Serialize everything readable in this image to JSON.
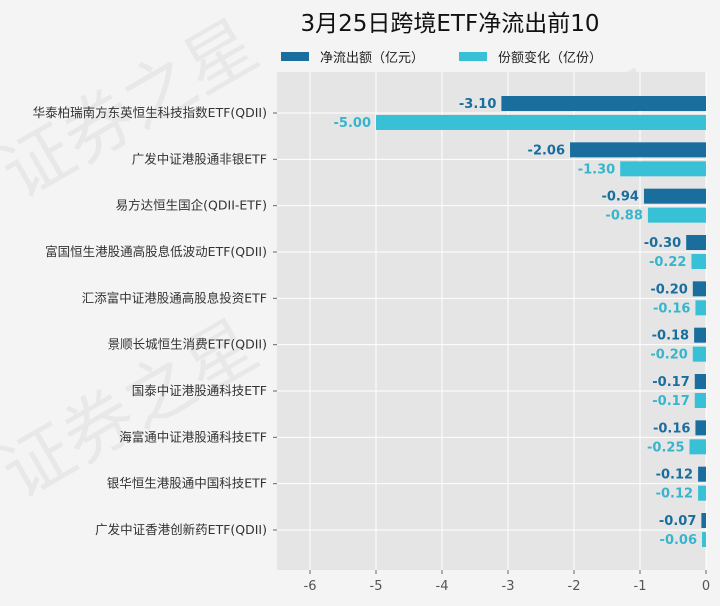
{
  "chart_data": {
    "type": "bar",
    "orientation": "horizontal",
    "title": "3月25日跨境ETF净流出前10",
    "categories": [
      "华泰柏瑞南方东英恒生科技指数ETF(QDII)",
      "广发中证港股通非银ETF",
      "易方达恒生国企(QDII-ETF)",
      "富国恒生港股通高股息低波动ETF(QDII)",
      "汇添富中证港股通高股息投资ETF",
      "景顺长城恒生消费ETF(QDII)",
      "国泰中证港股通科技ETF",
      "海富通中证港股通科技ETF",
      "银华恒生港股通中国科技ETF",
      "广发中证香港创新药ETF(QDII)"
    ],
    "series": [
      {
        "name": "净流出额（亿元）",
        "color": "#1a6e9e",
        "values": [
          -3.1,
          -2.06,
          -0.94,
          -0.3,
          -0.2,
          -0.18,
          -0.17,
          -0.16,
          -0.12,
          -0.07
        ],
        "labels": [
          "-3.10",
          "-2.06",
          "-0.94",
          "-0.30",
          "-0.20",
          "-0.18",
          "-0.17",
          "-0.16",
          "-0.12",
          "-0.07"
        ]
      },
      {
        "name": "份额变化（亿份）",
        "color": "#38c0d6",
        "values": [
          -5.0,
          -1.3,
          -0.88,
          -0.22,
          -0.16,
          -0.2,
          -0.17,
          -0.25,
          -0.12,
          -0.06
        ],
        "labels": [
          "-5.00",
          "-1.30",
          "-0.88",
          "-0.22",
          "-0.16",
          "-0.20",
          "-0.17",
          "-0.25",
          "-0.12",
          "-0.06"
        ]
      }
    ],
    "xlim": [
      -6.5,
      0
    ],
    "xticks": [
      "-6",
      "-5",
      "-4",
      "-3",
      "-2",
      "-1",
      "0"
    ],
    "xlabel": "",
    "ylabel": "",
    "grid": true,
    "legend_position": "top",
    "label_colors": [
      "#1a6e9e",
      "#38b5cc"
    ]
  },
  "watermark": "证券之星"
}
